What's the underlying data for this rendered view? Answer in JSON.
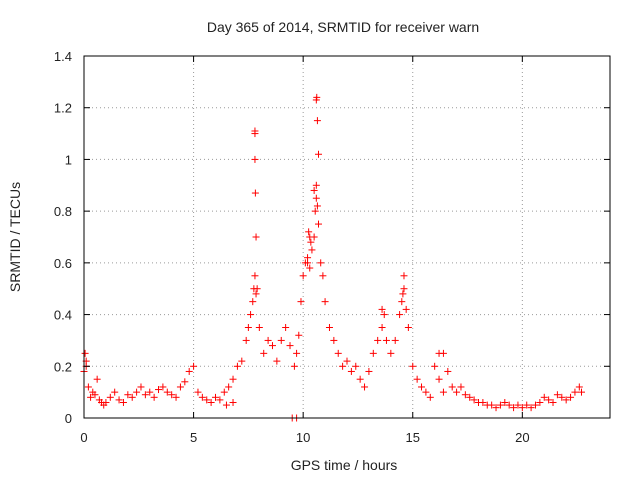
{
  "chart_data": {
    "type": "scatter",
    "title": "Day 365 of 2014, SRMTID for receiver warn",
    "xlabel": "GPS time / hours",
    "ylabel": "SRMTID / TECUs",
    "xlim": [
      0,
      24
    ],
    "ylim": [
      0,
      1.4
    ],
    "x_ticks": [
      0,
      5,
      10,
      15,
      20
    ],
    "y_ticks": [
      0,
      0.2,
      0.4,
      0.6,
      0.8,
      1,
      1.2,
      1.4
    ],
    "x_tick_labels": [
      "0",
      "5",
      "10",
      "15",
      "20"
    ],
    "y_tick_labels": [
      "0",
      "0.2",
      "0.4",
      "0.6",
      "0.8",
      "1",
      "1.2",
      "1.4"
    ],
    "grid": true,
    "marker": "+",
    "color": "#ff0000",
    "series": [
      {
        "name": "SRMTID",
        "x": [
          0.0,
          0.1,
          0.2,
          0.3,
          0.4,
          0.5,
          0.6,
          0.7,
          0.8,
          0.9,
          1.0,
          1.2,
          1.4,
          1.6,
          1.8,
          2.0,
          2.2,
          2.4,
          2.6,
          2.8,
          3.0,
          3.2,
          3.4,
          3.6,
          3.8,
          4.0,
          4.2,
          4.4,
          4.6,
          4.8,
          5.0,
          5.2,
          5.4,
          5.6,
          5.8,
          6.0,
          6.2,
          6.4,
          6.6,
          6.8,
          7.0,
          7.2,
          7.4,
          7.5,
          7.6,
          7.7,
          7.75,
          7.8,
          7.85,
          7.9,
          8.0,
          8.2,
          8.4,
          8.6,
          8.8,
          9.0,
          9.2,
          9.4,
          9.6,
          9.7,
          9.8,
          9.9,
          10.0,
          10.1,
          10.2,
          10.3,
          10.4,
          10.5,
          10.55,
          10.6,
          10.65,
          10.7,
          10.8,
          10.9,
          11.0,
          11.2,
          11.4,
          11.6,
          11.8,
          12.0,
          12.2,
          12.4,
          12.6,
          12.8,
          13.0,
          13.2,
          13.4,
          13.6,
          13.8,
          14.0,
          14.2,
          14.4,
          14.5,
          14.6,
          14.7,
          14.8,
          15.0,
          15.2,
          15.4,
          15.6,
          15.8,
          16.0,
          16.2,
          16.4,
          16.6,
          16.8,
          17.0,
          17.2,
          17.4,
          17.6,
          17.8,
          18.0,
          18.2,
          18.4,
          18.6,
          18.8,
          19.0,
          19.2,
          19.4,
          19.6,
          19.8,
          20.0,
          20.2,
          20.4,
          20.6,
          20.8,
          21.0,
          21.2,
          21.4,
          21.6,
          21.8,
          22.0,
          22.2,
          22.4,
          22.6,
          22.7,
          7.8,
          7.8,
          7.82,
          7.85,
          7.8,
          10.6,
          10.62,
          10.65,
          10.7,
          10.6,
          10.5,
          10.3,
          10.35,
          10.2,
          10.25,
          14.6,
          14.55,
          13.7,
          13.6,
          16.2,
          16.4,
          9.5,
          9.7,
          6.5,
          6.8,
          0.05,
          0.1
        ],
        "y": [
          0.18,
          0.22,
          0.12,
          0.08,
          0.1,
          0.09,
          0.15,
          0.07,
          0.06,
          0.05,
          0.06,
          0.08,
          0.1,
          0.07,
          0.06,
          0.09,
          0.08,
          0.1,
          0.12,
          0.09,
          0.1,
          0.08,
          0.11,
          0.12,
          0.1,
          0.09,
          0.08,
          0.12,
          0.14,
          0.18,
          0.2,
          0.1,
          0.08,
          0.07,
          0.06,
          0.08,
          0.07,
          0.1,
          0.12,
          0.15,
          0.2,
          0.22,
          0.3,
          0.35,
          0.4,
          0.45,
          0.5,
          0.55,
          0.48,
          0.5,
          0.35,
          0.25,
          0.3,
          0.28,
          0.22,
          0.3,
          0.35,
          0.28,
          0.2,
          0.25,
          0.32,
          0.45,
          0.55,
          0.6,
          0.62,
          0.58,
          0.65,
          0.7,
          0.8,
          0.85,
          0.82,
          0.75,
          0.6,
          0.55,
          0.45,
          0.35,
          0.3,
          0.25,
          0.2,
          0.22,
          0.18,
          0.2,
          0.15,
          0.12,
          0.18,
          0.25,
          0.3,
          0.35,
          0.3,
          0.25,
          0.3,
          0.4,
          0.45,
          0.5,
          0.42,
          0.35,
          0.2,
          0.15,
          0.12,
          0.1,
          0.08,
          0.2,
          0.15,
          0.1,
          0.18,
          0.12,
          0.1,
          0.12,
          0.09,
          0.08,
          0.07,
          0.06,
          0.06,
          0.05,
          0.05,
          0.04,
          0.05,
          0.06,
          0.05,
          0.04,
          0.05,
          0.04,
          0.05,
          0.04,
          0.05,
          0.06,
          0.08,
          0.07,
          0.06,
          0.09,
          0.08,
          0.07,
          0.08,
          0.1,
          0.12,
          0.1,
          1.1,
          1.0,
          0.87,
          0.7,
          1.11,
          1.23,
          1.24,
          1.15,
          1.02,
          0.9,
          0.88,
          0.7,
          0.68,
          0.6,
          0.72,
          0.55,
          0.48,
          0.4,
          0.42,
          0.25,
          0.25,
          0.0,
          0.0,
          0.05,
          0.06,
          0.25,
          0.2
        ]
      }
    ]
  }
}
